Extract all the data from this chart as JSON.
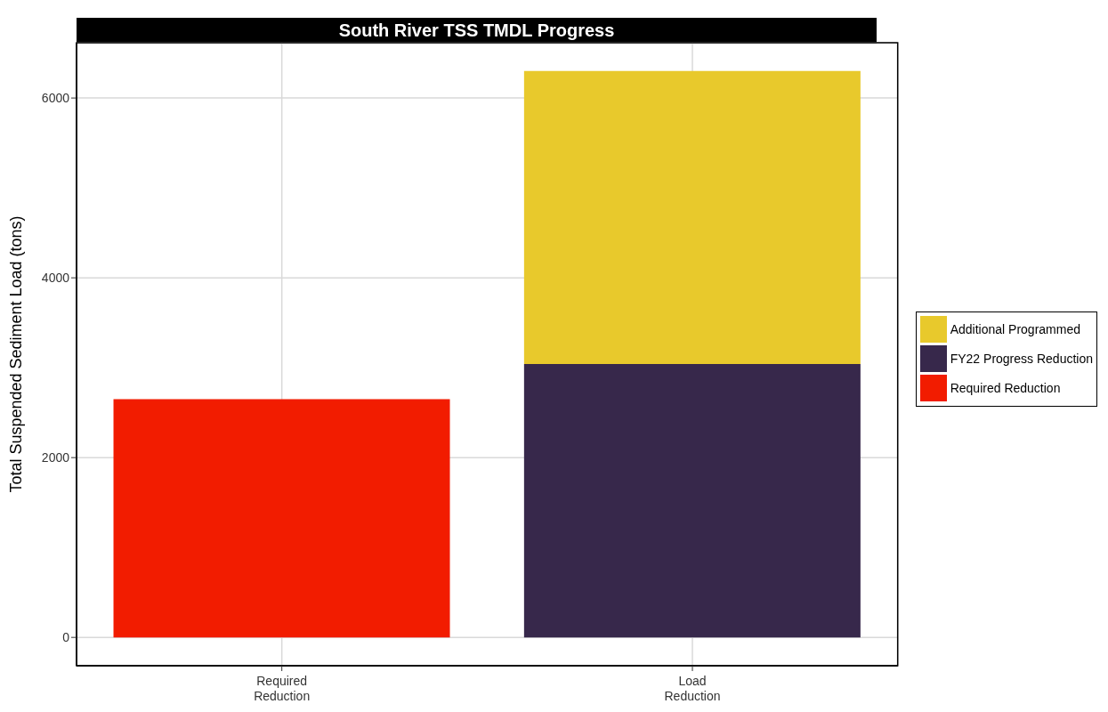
{
  "chart_data": {
    "type": "bar",
    "title": "South River TSS TMDL Progress",
    "ylabel": "Total Suspended Sediment Load (tons)",
    "categories": [
      "Required Reduction",
      "Load Reduction"
    ],
    "stacked": true,
    "series": [
      {
        "name": "Required Reduction",
        "color": "#f21c00",
        "values": [
          2650,
          null
        ]
      },
      {
        "name": "FY22 Progress Reduction",
        "color": "#37284b",
        "values": [
          null,
          3040
        ]
      },
      {
        "name": "Additional Programmed",
        "color": "#e8c92c",
        "values": [
          null,
          3260
        ]
      }
    ],
    "ylim": [
      -315,
      6615
    ],
    "yticks": [
      0,
      2000,
      4000,
      6000
    ],
    "grid": true,
    "legend": "right"
  }
}
